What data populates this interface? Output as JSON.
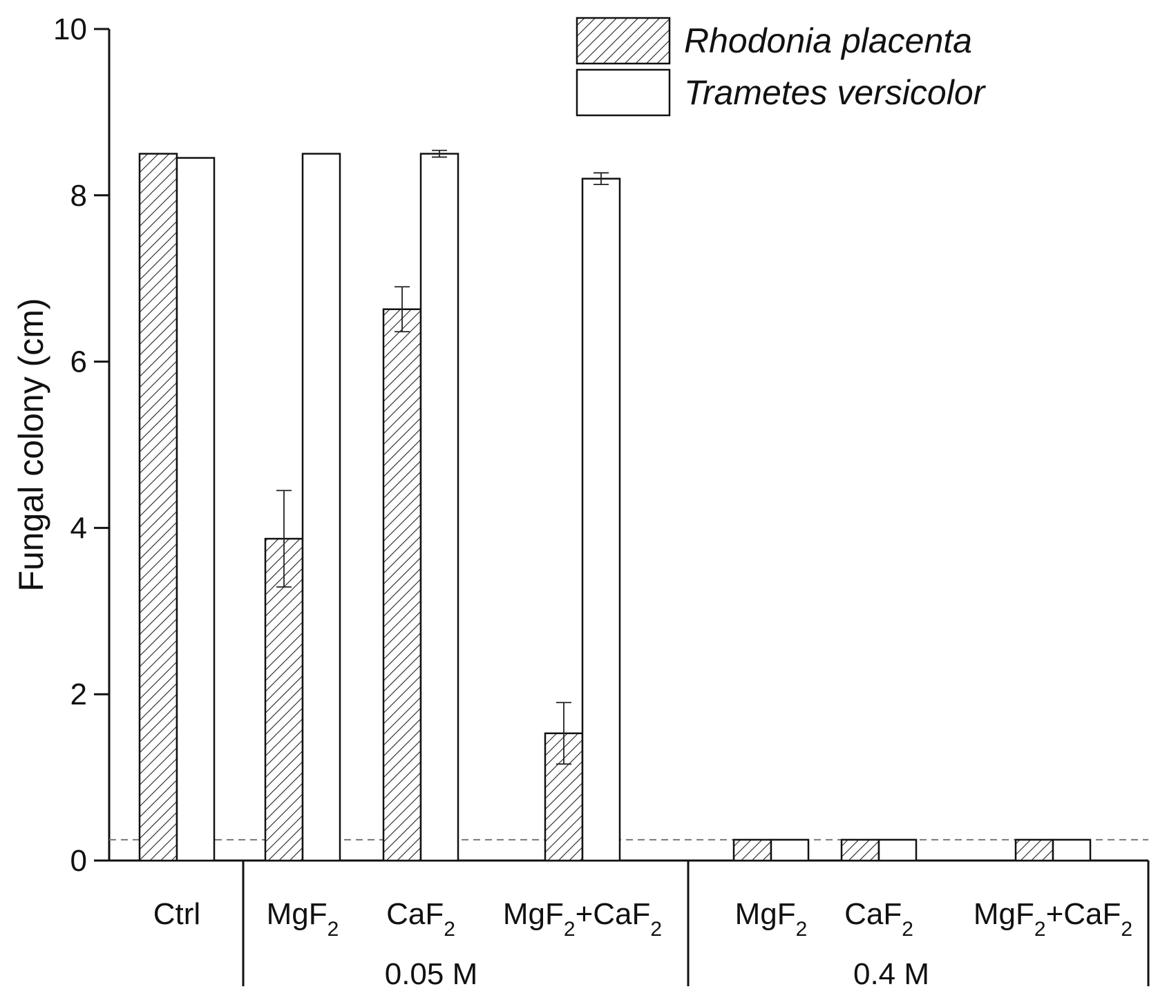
{
  "chart_data": {
    "type": "bar",
    "ylabel": "Fungal colony (cm)",
    "xlabel": "",
    "ylim": [
      0,
      10
    ],
    "yticks": [
      0,
      2,
      4,
      6,
      8,
      10
    ],
    "legend_position": "top-right",
    "threshold_line": 0.25,
    "categories": [
      {
        "base": "Ctrl",
        "sub": "",
        "group": ""
      },
      {
        "base": "MgF",
        "sub": "2",
        "group": "0.05 M"
      },
      {
        "base": "CaF",
        "sub": "2",
        "group": "0.05 M"
      },
      {
        "base": "MgF+CaF",
        "sub": "2",
        "group": "0.05 M"
      },
      {
        "base": "MgF",
        "sub": "2",
        "group": "0.4 M"
      },
      {
        "base": "CaF",
        "sub": "2",
        "group": "0.4 M"
      },
      {
        "base": "MgF+CaF",
        "sub": "2",
        "group": "0.4 M"
      }
    ],
    "category_labels": [
      "Ctrl",
      "MgF2",
      "CaF2",
      "MgF2+CaF2",
      "MgF2",
      "CaF2",
      "MgF2+CaF2"
    ],
    "groups": [
      "0.05 M",
      "0.4 M"
    ],
    "series": [
      {
        "name": "Rhodonia placenta",
        "pattern": "hatched",
        "values": [
          8.5,
          3.87,
          6.63,
          1.53,
          0.25,
          0.25,
          0.25
        ],
        "errors": [
          0,
          0.58,
          0.27,
          0.37,
          0,
          0,
          0
        ]
      },
      {
        "name": "Trametes versicolor",
        "pattern": "open",
        "values": [
          8.45,
          8.5,
          8.5,
          8.2,
          0.25,
          0.25,
          0.25
        ],
        "errors": [
          0,
          0,
          0.04,
          0.07,
          0,
          0,
          0
        ]
      }
    ],
    "colors": {
      "stroke": "#111111",
      "fill": "#ffffff",
      "threshold": "#777777"
    }
  }
}
